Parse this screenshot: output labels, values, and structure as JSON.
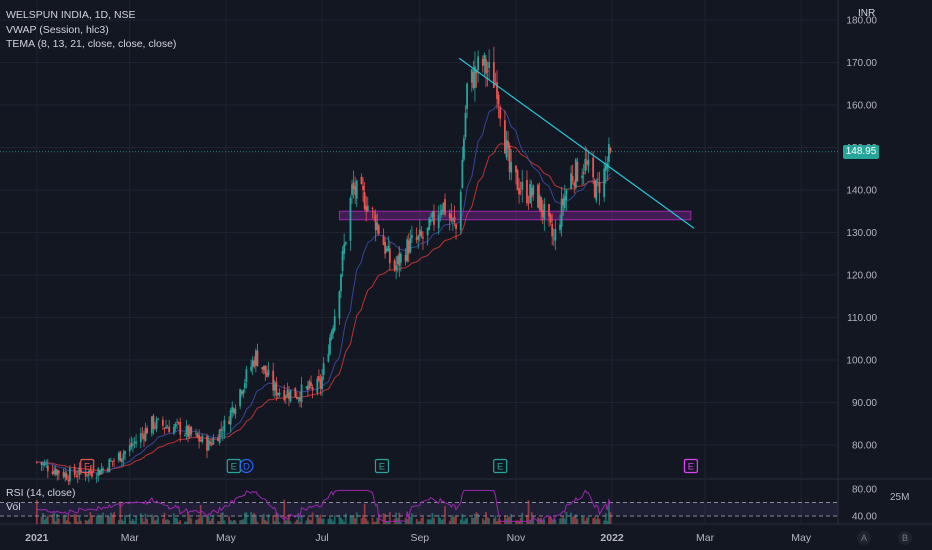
{
  "header": {
    "symbol_line": "WELSPUN INDIA, 1D, NSE",
    "vwap_line": "VWAP (Session, hlc3)",
    "tema_line": "TEMA (8, 13, 21, close, close, close)",
    "currency": "INR"
  },
  "last_price": "148.95",
  "rsi_label": "RSI (14, close)",
  "vol_label": "Vol",
  "vol_scale_label": "25M",
  "bottom_buttons": [
    "A",
    "B"
  ],
  "colors": {
    "background": "#131722",
    "up": "#26a69a",
    "down": "#ef5350",
    "trendline": "#26c6da",
    "zone": "#9c27b0",
    "rsi": "#9c27b0",
    "grid": "#1f2330"
  },
  "chart_data": {
    "type": "candlestick",
    "y_axis_ticks": [
      "180.00",
      "170.00",
      "160.00",
      "150.00",
      "140.00",
      "130.00",
      "120.00",
      "110.00",
      "100.00",
      "90.00",
      "80.00"
    ],
    "x_axis_ticks": [
      "2021",
      "Mar",
      "May",
      "Jul",
      "Sep",
      "Nov",
      "2022",
      "Mar",
      "May"
    ],
    "ylim": [
      72,
      183
    ],
    "price_path": [
      [
        "2021-01-01",
        76
      ],
      [
        "2021-01-20",
        73
      ],
      [
        "2021-02-10",
        74
      ],
      [
        "2021-02-28",
        79
      ],
      [
        "2021-03-15",
        85
      ],
      [
        "2021-04-01",
        84
      ],
      [
        "2021-04-20",
        80
      ],
      [
        "2021-05-01",
        85
      ],
      [
        "2021-05-10",
        93
      ],
      [
        "2021-05-20",
        101
      ],
      [
        "2021-06-01",
        93
      ],
      [
        "2021-06-15",
        92
      ],
      [
        "2021-06-30",
        94
      ],
      [
        "2021-07-10",
        113
      ],
      [
        "2021-07-20",
        140
      ],
      [
        "2021-07-28",
        138
      ],
      [
        "2021-08-05",
        132
      ],
      [
        "2021-08-15",
        121
      ],
      [
        "2021-08-25",
        127
      ],
      [
        "2021-09-05",
        129
      ],
      [
        "2021-09-15",
        137
      ],
      [
        "2021-09-25",
        130
      ],
      [
        "2021-10-01",
        164
      ],
      [
        "2021-10-10",
        170
      ],
      [
        "2021-10-20",
        165
      ],
      [
        "2021-10-28",
        144
      ],
      [
        "2021-11-05",
        140
      ],
      [
        "2021-11-15",
        138
      ],
      [
        "2021-11-25",
        128
      ],
      [
        "2021-12-05",
        143
      ],
      [
        "2021-12-15",
        146
      ],
      [
        "2021-12-22",
        140
      ],
      [
        "2021-12-27",
        144
      ],
      [
        "2021-12-31",
        149
      ]
    ],
    "trendline": [
      [
        "2021-09-26",
        171
      ],
      [
        "2021-12-31",
        149
      ],
      [
        "2022-02-22",
        131
      ]
    ],
    "support_zone": {
      "from": "2021-07-12",
      "to": "2022-02-20",
      "low": 133,
      "high": 135
    },
    "earnings_markers": [
      {
        "date": "2021-02-02",
        "label": "E"
      },
      {
        "date": "2021-05-06",
        "label": "E"
      },
      {
        "date": "2021-05-14",
        "label": "D"
      },
      {
        "date": "2021-08-08",
        "label": "E"
      },
      {
        "date": "2021-10-22",
        "label": "E"
      },
      {
        "date": "2022-02-20",
        "label": "E"
      }
    ],
    "rsi_ticks": [
      "80.00",
      "40.00"
    ],
    "rsi_ylim": [
      30,
      90
    ],
    "rsi_levels": [
      70,
      30
    ]
  }
}
